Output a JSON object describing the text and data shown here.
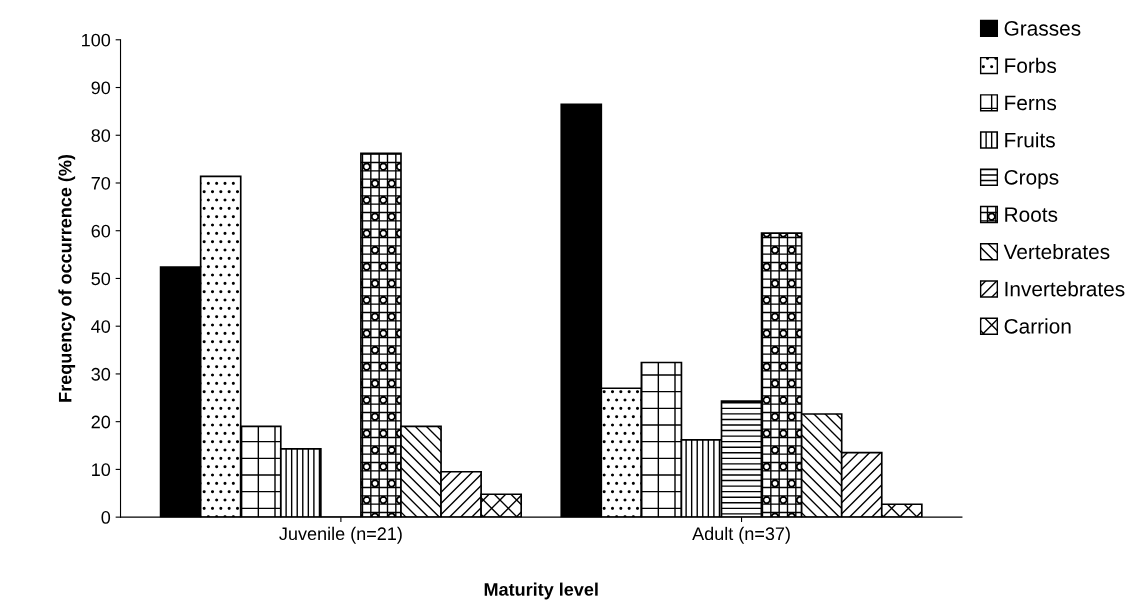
{
  "chart_data": {
    "type": "bar",
    "xlabel": "Maturity level",
    "ylabel": "Frequency of occurrence (%)",
    "categories": [
      "Juvenile (n=21)",
      "Adult (n=37)"
    ],
    "series": [
      {
        "name": "Grasses",
        "color": "#000000",
        "values": [
          52.4,
          86.5
        ]
      },
      {
        "name": "Forbs",
        "color": "#000000",
        "values": [
          71.4,
          27.0
        ]
      },
      {
        "name": "Ferns",
        "color": "#000000",
        "values": [
          19.0,
          32.4
        ]
      },
      {
        "name": "Fruits",
        "color": "#000000",
        "values": [
          14.3,
          16.2
        ]
      },
      {
        "name": "Crops",
        "color": "#000000",
        "values": [
          0,
          24.3
        ]
      },
      {
        "name": "Roots",
        "color": "#000000",
        "values": [
          76.2,
          59.5
        ]
      },
      {
        "name": "Vertebrates",
        "color": "#000000",
        "values": [
          19.0,
          21.6
        ]
      },
      {
        "name": "Invertebrates",
        "color": "#000000",
        "values": [
          9.5,
          13.5
        ]
      },
      {
        "name": "Carrion",
        "color": "#000000",
        "values": [
          4.8,
          2.7
        ]
      }
    ],
    "ylim": [
      0,
      100
    ],
    "yticks": [
      0,
      10,
      20,
      30,
      40,
      50,
      60,
      70,
      80,
      90,
      100
    ],
    "grid": false,
    "legend": "right"
  }
}
